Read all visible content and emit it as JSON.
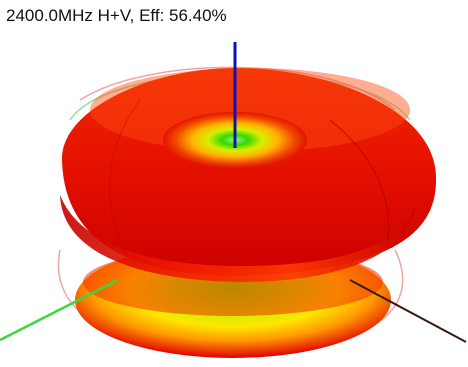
{
  "pattern": {
    "caption": "2400.0MHz H+V, Eff: 56.40%",
    "frequency": "2400.0MHz",
    "polarization": "H+V",
    "efficiency": "56.40%"
  },
  "colors": {
    "background": "#ffffff",
    "hot": "#e00000",
    "warm": "#ff8a00",
    "mid": "#ffe600",
    "cool": "#2be000",
    "z_axis": "#0a14b4",
    "x_axis": "#3ad83a",
    "y_axis": "#3a1a12",
    "outline_red": "#f3a3a3",
    "outline_green": "#9be09b"
  }
}
